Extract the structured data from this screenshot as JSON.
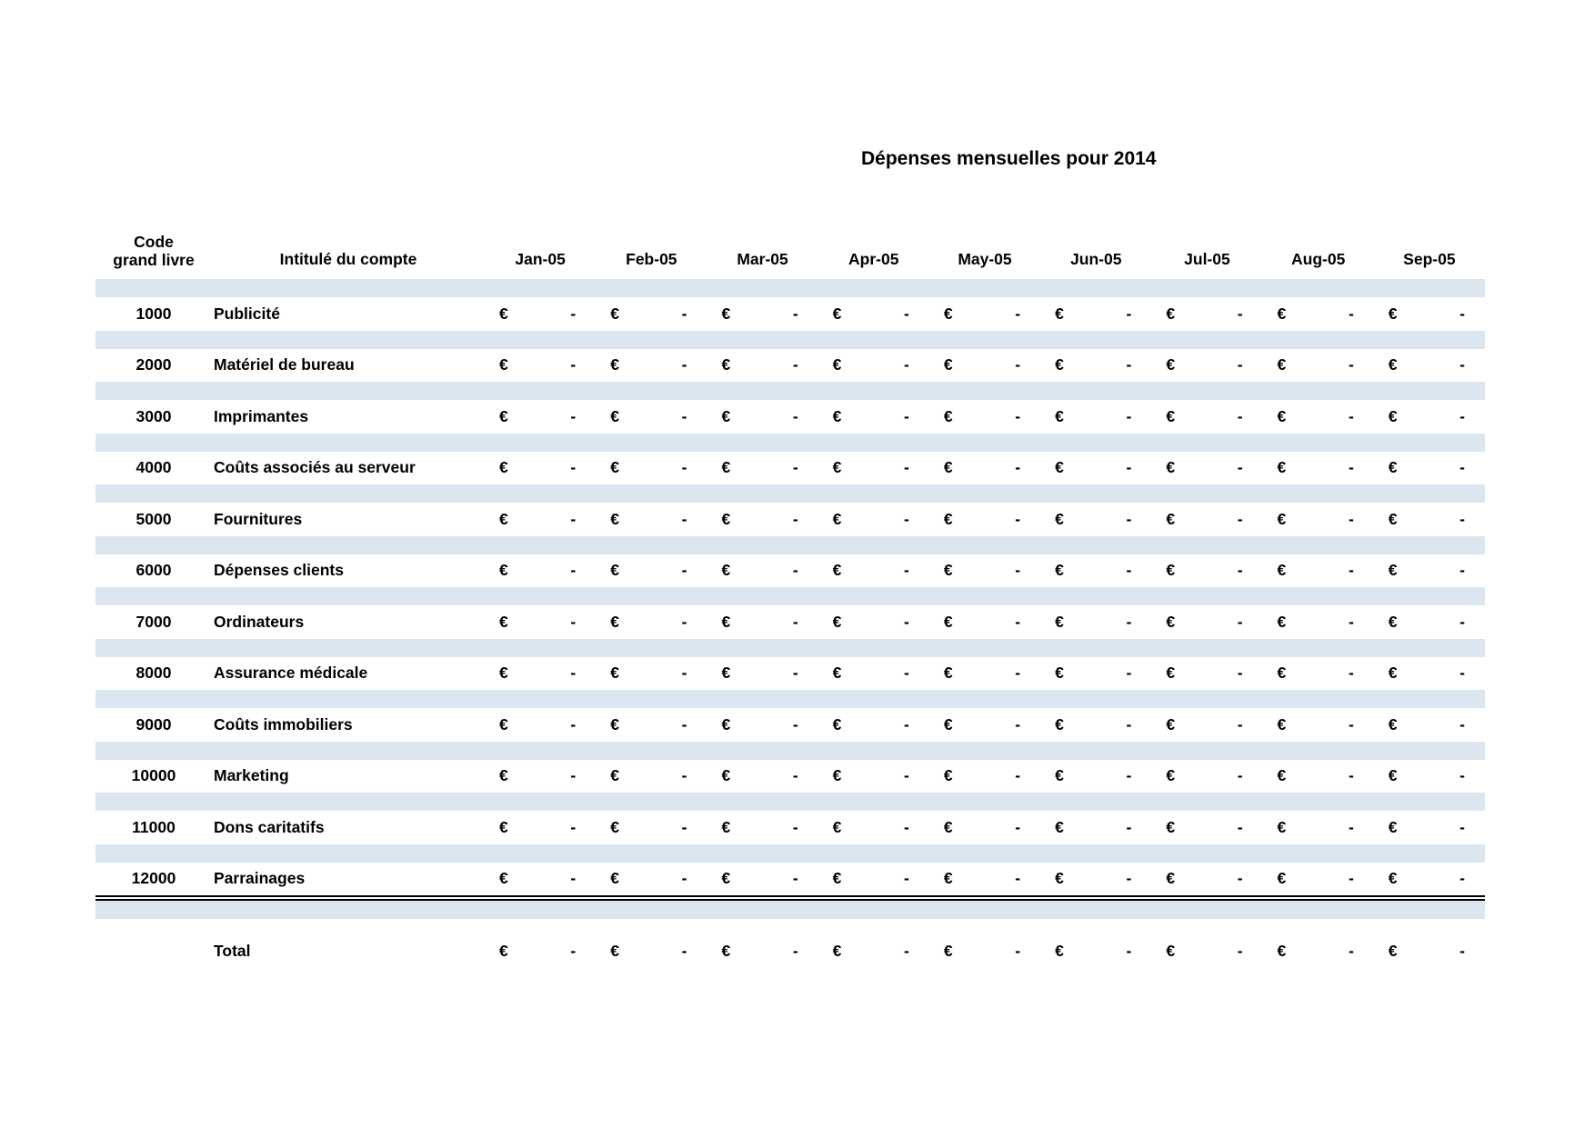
{
  "title": "Dépenses mensuelles pour 2014",
  "header": {
    "code_line1": "Code",
    "code_line2": "grand livre",
    "account": "Intitulé du compte",
    "months": [
      "Jan-05",
      "Feb-05",
      "Mar-05",
      "Apr-05",
      "May-05",
      "Jun-05",
      "Jul-05",
      "Aug-05",
      "Sep-05"
    ]
  },
  "currency_symbol": "€",
  "empty_value": "-",
  "rows": [
    {
      "code": "1000",
      "name": "Publicité"
    },
    {
      "code": "2000",
      "name": "Matériel de bureau"
    },
    {
      "code": "3000",
      "name": "Imprimantes"
    },
    {
      "code": "4000",
      "name": "Coûts associés au serveur"
    },
    {
      "code": "5000",
      "name": "Fournitures"
    },
    {
      "code": "6000",
      "name": "Dépenses clients"
    },
    {
      "code": "7000",
      "name": "Ordinateurs"
    },
    {
      "code": "8000",
      "name": "Assurance médicale"
    },
    {
      "code": "9000",
      "name": "Coûts immobiliers"
    },
    {
      "code": "10000",
      "name": "Marketing"
    },
    {
      "code": "11000",
      "name": "Dons caritatifs"
    },
    {
      "code": "12000",
      "name": "Parrainages"
    }
  ],
  "total": {
    "label": "Total"
  },
  "colors": {
    "band": "#dce6f1",
    "text": "#000000",
    "background": "#ffffff"
  }
}
